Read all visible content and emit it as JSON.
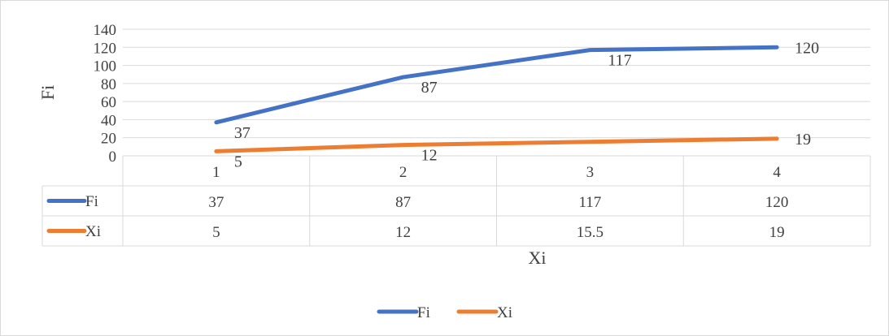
{
  "chart_data": {
    "type": "line",
    "title": "",
    "xlabel": "Xi",
    "ylabel": "Fi",
    "categories": [
      "1",
      "2",
      "3",
      "4"
    ],
    "ylim": [
      0,
      140
    ],
    "yticks": [
      0,
      20,
      40,
      60,
      80,
      100,
      120,
      140
    ],
    "grid": true,
    "legend": "bottom",
    "data_table": true,
    "series": [
      {
        "name": "Fi",
        "color": "#4472c4",
        "values": [
          37,
          87,
          117,
          120
        ],
        "table_values": [
          "37",
          "87",
          "117",
          "120"
        ],
        "labels": [
          "37",
          "87",
          "117",
          "120"
        ]
      },
      {
        "name": "Xi",
        "color": "#ed7d31",
        "values": [
          5,
          12,
          15.5,
          19
        ],
        "table_values": [
          "5",
          "12",
          "15.5",
          "19"
        ],
        "labels": [
          "5",
          "12",
          "",
          "19"
        ]
      }
    ]
  }
}
